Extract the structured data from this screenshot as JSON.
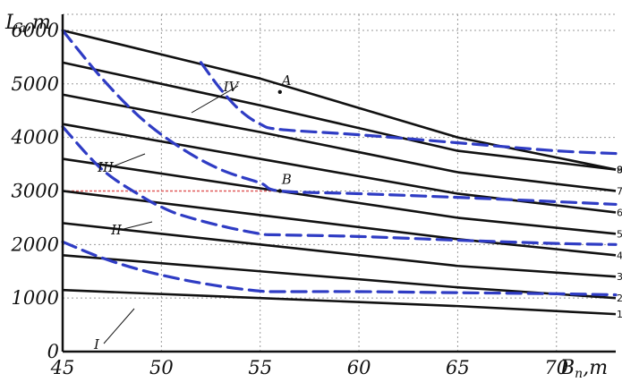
{
  "chart_data": {
    "type": "line",
    "xlabel": "B",
    "xlabel_sub": "n",
    "xlabel_unit": ",m",
    "ylabel": "L",
    "ylabel_sub": "a",
    "ylabel_unit": ",m",
    "xlim": [
      45,
      73
    ],
    "ylim": [
      0,
      6300
    ],
    "x_ticks": [
      "45",
      "50",
      "55",
      "60",
      "65",
      "70"
    ],
    "y_ticks": [
      "0",
      "1000",
      "2000",
      "3000",
      "4000",
      "5000",
      "6000"
    ],
    "grid": true,
    "black_series": [
      {
        "x": [
          45,
          55,
          65,
          73
        ],
        "y": [
          1150,
          1000,
          850,
          700
        ]
      },
      {
        "x": [
          45,
          55,
          65,
          73
        ],
        "y": [
          1800,
          1500,
          1200,
          1000
        ]
      },
      {
        "x": [
          45,
          55,
          65,
          73
        ],
        "y": [
          2400,
          2000,
          1600,
          1400
        ]
      },
      {
        "x": [
          45,
          55,
          65,
          73
        ],
        "y": [
          3000,
          2550,
          2100,
          1800
        ]
      },
      {
        "x": [
          45,
          55,
          65,
          73
        ],
        "y": [
          3600,
          3050,
          2500,
          2200
        ]
      },
      {
        "x": [
          45,
          55,
          65,
          73
        ],
        "y": [
          4250,
          3600,
          2950,
          2600
        ]
      },
      {
        "x": [
          45,
          55,
          65,
          73
        ],
        "y": [
          4800,
          4100,
          3350,
          3000
        ]
      },
      {
        "x": [
          45,
          55,
          65,
          73
        ],
        "y": [
          5400,
          4600,
          3750,
          3400
        ]
      },
      {
        "x": [
          45,
          55,
          65,
          73
        ],
        "y": [
          6000,
          5100,
          4000,
          3400
        ]
      }
    ],
    "dashed_series": [
      {
        "name": "I",
        "x": [
          45,
          47,
          49,
          51,
          53,
          55,
          56,
          60,
          65,
          70,
          73
        ],
        "y": [
          2050,
          1750,
          1520,
          1350,
          1220,
          1130,
          1120,
          1120,
          1100,
          1080,
          1060
        ]
      },
      {
        "name": "II",
        "x": [
          45,
          47,
          49,
          50,
          51,
          53,
          55,
          56,
          60,
          65,
          70,
          73
        ],
        "y": [
          4200,
          3400,
          2900,
          2700,
          2550,
          2350,
          2200,
          2180,
          2150,
          2080,
          2020,
          2000
        ]
      },
      {
        "name": "III",
        "x": [
          45,
          47,
          49,
          51,
          53,
          55,
          56,
          60,
          65,
          70,
          73
        ],
        "y": [
          6000,
          5100,
          4350,
          3800,
          3400,
          3150,
          3000,
          2950,
          2880,
          2800,
          2750
        ]
      },
      {
        "name": "IV",
        "x": [
          52,
          53,
          54,
          55,
          56,
          60,
          65,
          70,
          73
        ],
        "y": [
          5400,
          4900,
          4500,
          4250,
          4150,
          4050,
          3900,
          3750,
          3700
        ]
      }
    ],
    "red_reference": {
      "y": 3000,
      "x_from": 45,
      "x_to": 56
    },
    "points": [
      {
        "label": "A",
        "x": 56,
        "y": 4850
      },
      {
        "label": "B",
        "x": 56,
        "y": 3000
      }
    ],
    "edge_labels": [
      "9",
      "8",
      "7",
      "6",
      "5",
      "4",
      "3",
      "2",
      "1"
    ],
    "colors": {
      "line": "#111111",
      "dashed": "#2f3cc4",
      "reference": "#e05a5a",
      "grid": "#9a9a9a"
    }
  }
}
